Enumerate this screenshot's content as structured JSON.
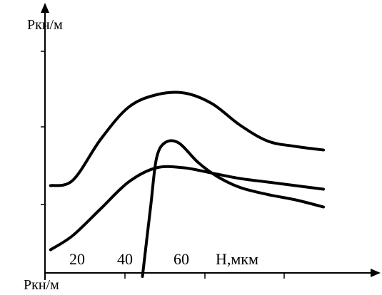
{
  "chart_data": {
    "type": "line",
    "ylabel_top": "Pкн/м",
    "ylabel_bottom": "Pкн/м",
    "xlabel": "H,мкм",
    "x_tick_labels": [
      "20",
      "40",
      "60"
    ],
    "grid": false,
    "series": [
      {
        "points": [
          [
            2,
            2.55
          ],
          [
            10,
            2.7
          ],
          [
            20,
            3.85
          ],
          [
            30,
            4.75
          ],
          [
            40,
            5.1
          ],
          [
            50,
            5.15
          ],
          [
            60,
            4.85
          ],
          [
            70,
            4.25
          ],
          [
            80,
            3.8
          ],
          [
            90,
            3.65
          ],
          [
            100,
            3.55
          ]
        ]
      },
      {
        "points": [
          [
            2,
            0.75
          ],
          [
            10,
            1.15
          ],
          [
            20,
            1.9
          ],
          [
            30,
            2.65
          ],
          [
            40,
            3.05
          ],
          [
            50,
            3.05
          ],
          [
            60,
            2.9
          ],
          [
            70,
            2.75
          ],
          [
            80,
            2.65
          ],
          [
            90,
            2.55
          ],
          [
            100,
            2.45
          ]
        ]
      },
      {
        "points": [
          [
            35,
            0.0
          ],
          [
            38,
            2.0
          ],
          [
            40,
            3.3
          ],
          [
            43,
            3.75
          ],
          [
            48,
            3.75
          ],
          [
            55,
            3.2
          ],
          [
            62,
            2.8
          ],
          [
            70,
            2.5
          ],
          [
            80,
            2.3
          ],
          [
            90,
            2.15
          ],
          [
            100,
            1.95
          ]
        ]
      }
    ]
  }
}
